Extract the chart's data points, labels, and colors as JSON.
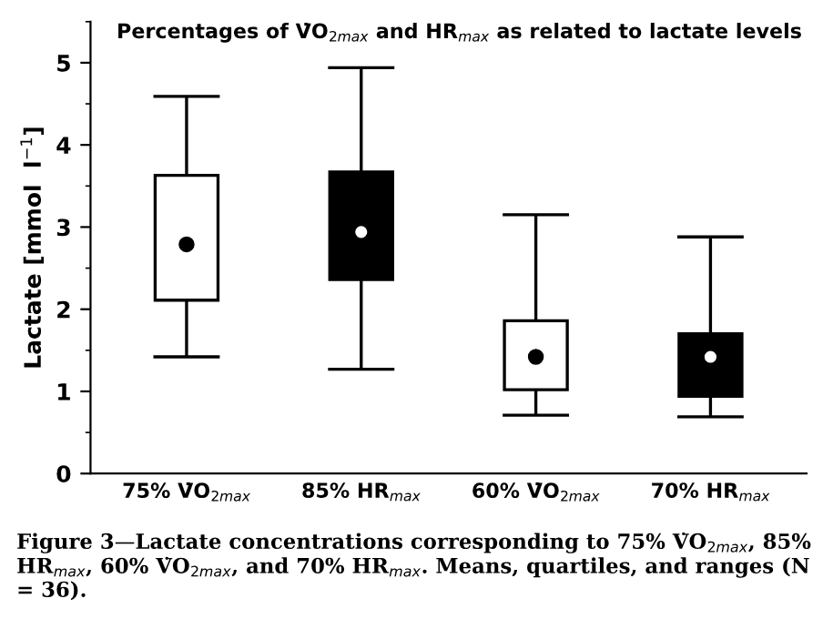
{
  "chart_data": {
    "type": "box",
    "title": "Percentages of V̇O$_{2max}$ and HR$_{max}$ as related to lactate levels",
    "ylabel": "Lactate [mmol  l$^{−1}$]",
    "categories": [
      "75% V̇O$_{2max}$",
      "85% HR$_{max}$",
      "60% V̇O$_{2max}$",
      "70% HR$_{max}$"
    ],
    "colors": [
      "#ffffff",
      "#000000",
      "#ffffff",
      "#000000"
    ],
    "boxes": [
      {
        "low": 1.42,
        "q1": 2.11,
        "q3": 3.63,
        "high": 4.59,
        "mean": 2.79
      },
      {
        "low": 1.27,
        "q1": 2.36,
        "q3": 3.67,
        "high": 4.94,
        "mean": 2.94
      },
      {
        "low": 0.71,
        "q1": 1.02,
        "q3": 1.86,
        "high": 3.15,
        "mean": 1.42
      },
      {
        "low": 0.69,
        "q1": 0.94,
        "q3": 1.7,
        "high": 2.88,
        "mean": 1.42
      }
    ],
    "ylim": [
      0,
      5.5
    ],
    "yticks": [
      0,
      1,
      2,
      3,
      4,
      5
    ],
    "grid": false,
    "legend": false,
    "annotations": [
      "Figure 3—Lactate concentrations corresponding to 75% V̇O$_{2max}$, 85% HR$_{max}$, 60% V̇O$_{2max}$, and 70% HR$_{max}$. Means, quartiles, and ranges (N = 36)."
    ]
  }
}
